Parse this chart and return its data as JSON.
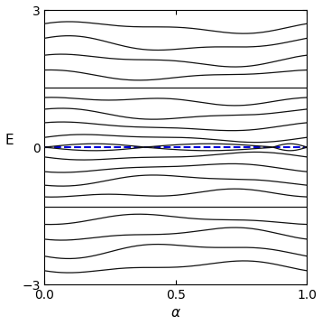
{
  "xlabel": "$\\alpha$",
  "ylabel": "E",
  "xlim": [
    0,
    1
  ],
  "ylim": [
    -3,
    3
  ],
  "background_color": "#ffffff",
  "band_color": "#111111",
  "dashed_color": "#0000dd",
  "band_linewidth": 0.9,
  "dashed_linewidth": 1.5,
  "xticks": [
    0,
    0.5,
    1
  ],
  "yticks": [
    -3,
    0,
    3
  ],
  "figsize": [
    3.57,
    3.6
  ],
  "dpi": 100,
  "pos_bands": [
    [
      0.2,
      0.07,
      1,
      0.0,
      0.03,
      2,
      0.5
    ],
    [
      0.45,
      0.08,
      1,
      0.8,
      0.03,
      2,
      1.2
    ],
    [
      0.72,
      0.1,
      1,
      1.5,
      0.04,
      2,
      0.3
    ],
    [
      1.02,
      0.06,
      1,
      0.3,
      0.05,
      2,
      1.8
    ],
    [
      1.3,
      0.0,
      1,
      0.0,
      0.0,
      2,
      0.0
    ],
    [
      1.58,
      0.09,
      1,
      2.0,
      0.04,
      2,
      0.7
    ],
    [
      1.9,
      0.11,
      1,
      0.6,
      0.05,
      2,
      1.4
    ],
    [
      2.25,
      0.13,
      1,
      1.2,
      0.06,
      2,
      0.2
    ],
    [
      2.62,
      0.1,
      1,
      0.4,
      0.05,
      2,
      1.0
    ]
  ],
  "zero_mode_amp": 0.075,
  "zero_mode_crossings": [
    0.0,
    0.38,
    0.87,
    1.0
  ]
}
